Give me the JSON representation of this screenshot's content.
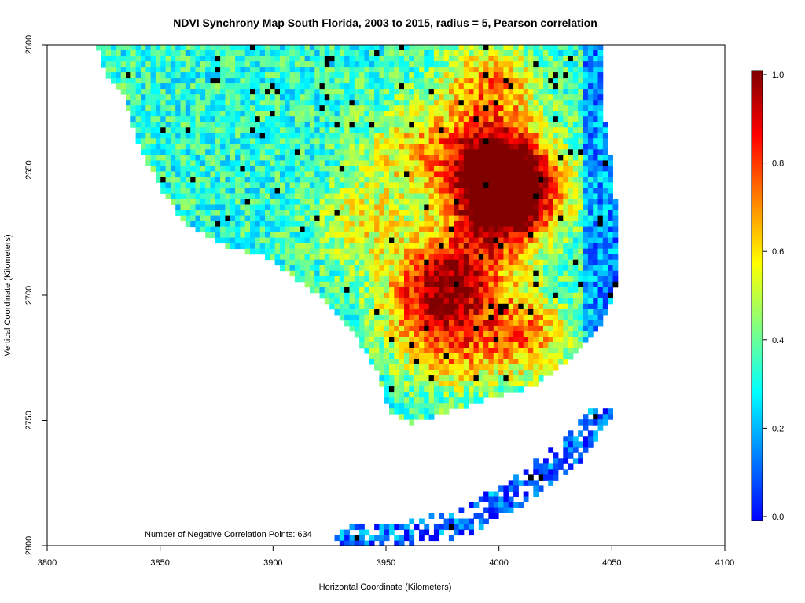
{
  "chart_data": {
    "type": "heatmap",
    "title": "NDVI Synchrony Map South Florida, 2003 to 2015, radius = 5, Pearson correlation",
    "xlabel": "Horizontal Coordinate (Kilometers)",
    "ylabel": "Vertical Coordinate (Kilometers)",
    "xlim": [
      3800,
      4100
    ],
    "ylim": [
      2800,
      2600
    ],
    "x_ticks": [
      3800,
      3850,
      3900,
      3950,
      4000,
      4050,
      4100
    ],
    "y_ticks": [
      2600,
      2650,
      2700,
      2750,
      2800
    ],
    "annotation": "Number of Negative Correlation Points: 634",
    "colorbar": {
      "range": [
        0.0,
        1.0
      ],
      "ticks": [
        "0.0",
        "0.2",
        "0.4",
        "0.6",
        "0.8",
        "1.0"
      ],
      "colors": [
        "#0000ff",
        "#0080ff",
        "#00ffff",
        "#80ff80",
        "#ffff00",
        "#ff8000",
        "#ff0000",
        "#800000"
      ]
    },
    "negative_color": "#000000",
    "hotspots": [
      {
        "x": 3995,
        "y": 2645,
        "value": 0.85
      },
      {
        "x": 4005,
        "y": 2655,
        "value": 0.88
      },
      {
        "x": 4000,
        "y": 2665,
        "value": 0.85
      },
      {
        "x": 3982,
        "y": 2690,
        "value": 0.78
      },
      {
        "x": 3968,
        "y": 2700,
        "value": 0.7
      },
      {
        "x": 4010,
        "y": 2715,
        "value": 0.72
      },
      {
        "x": 3975,
        "y": 2720,
        "value": 0.66
      },
      {
        "x": 3995,
        "y": 2615,
        "value": 0.72
      },
      {
        "x": 3960,
        "y": 2640,
        "value": 0.6
      },
      {
        "x": 3940,
        "y": 2670,
        "value": 0.58
      }
    ]
  }
}
